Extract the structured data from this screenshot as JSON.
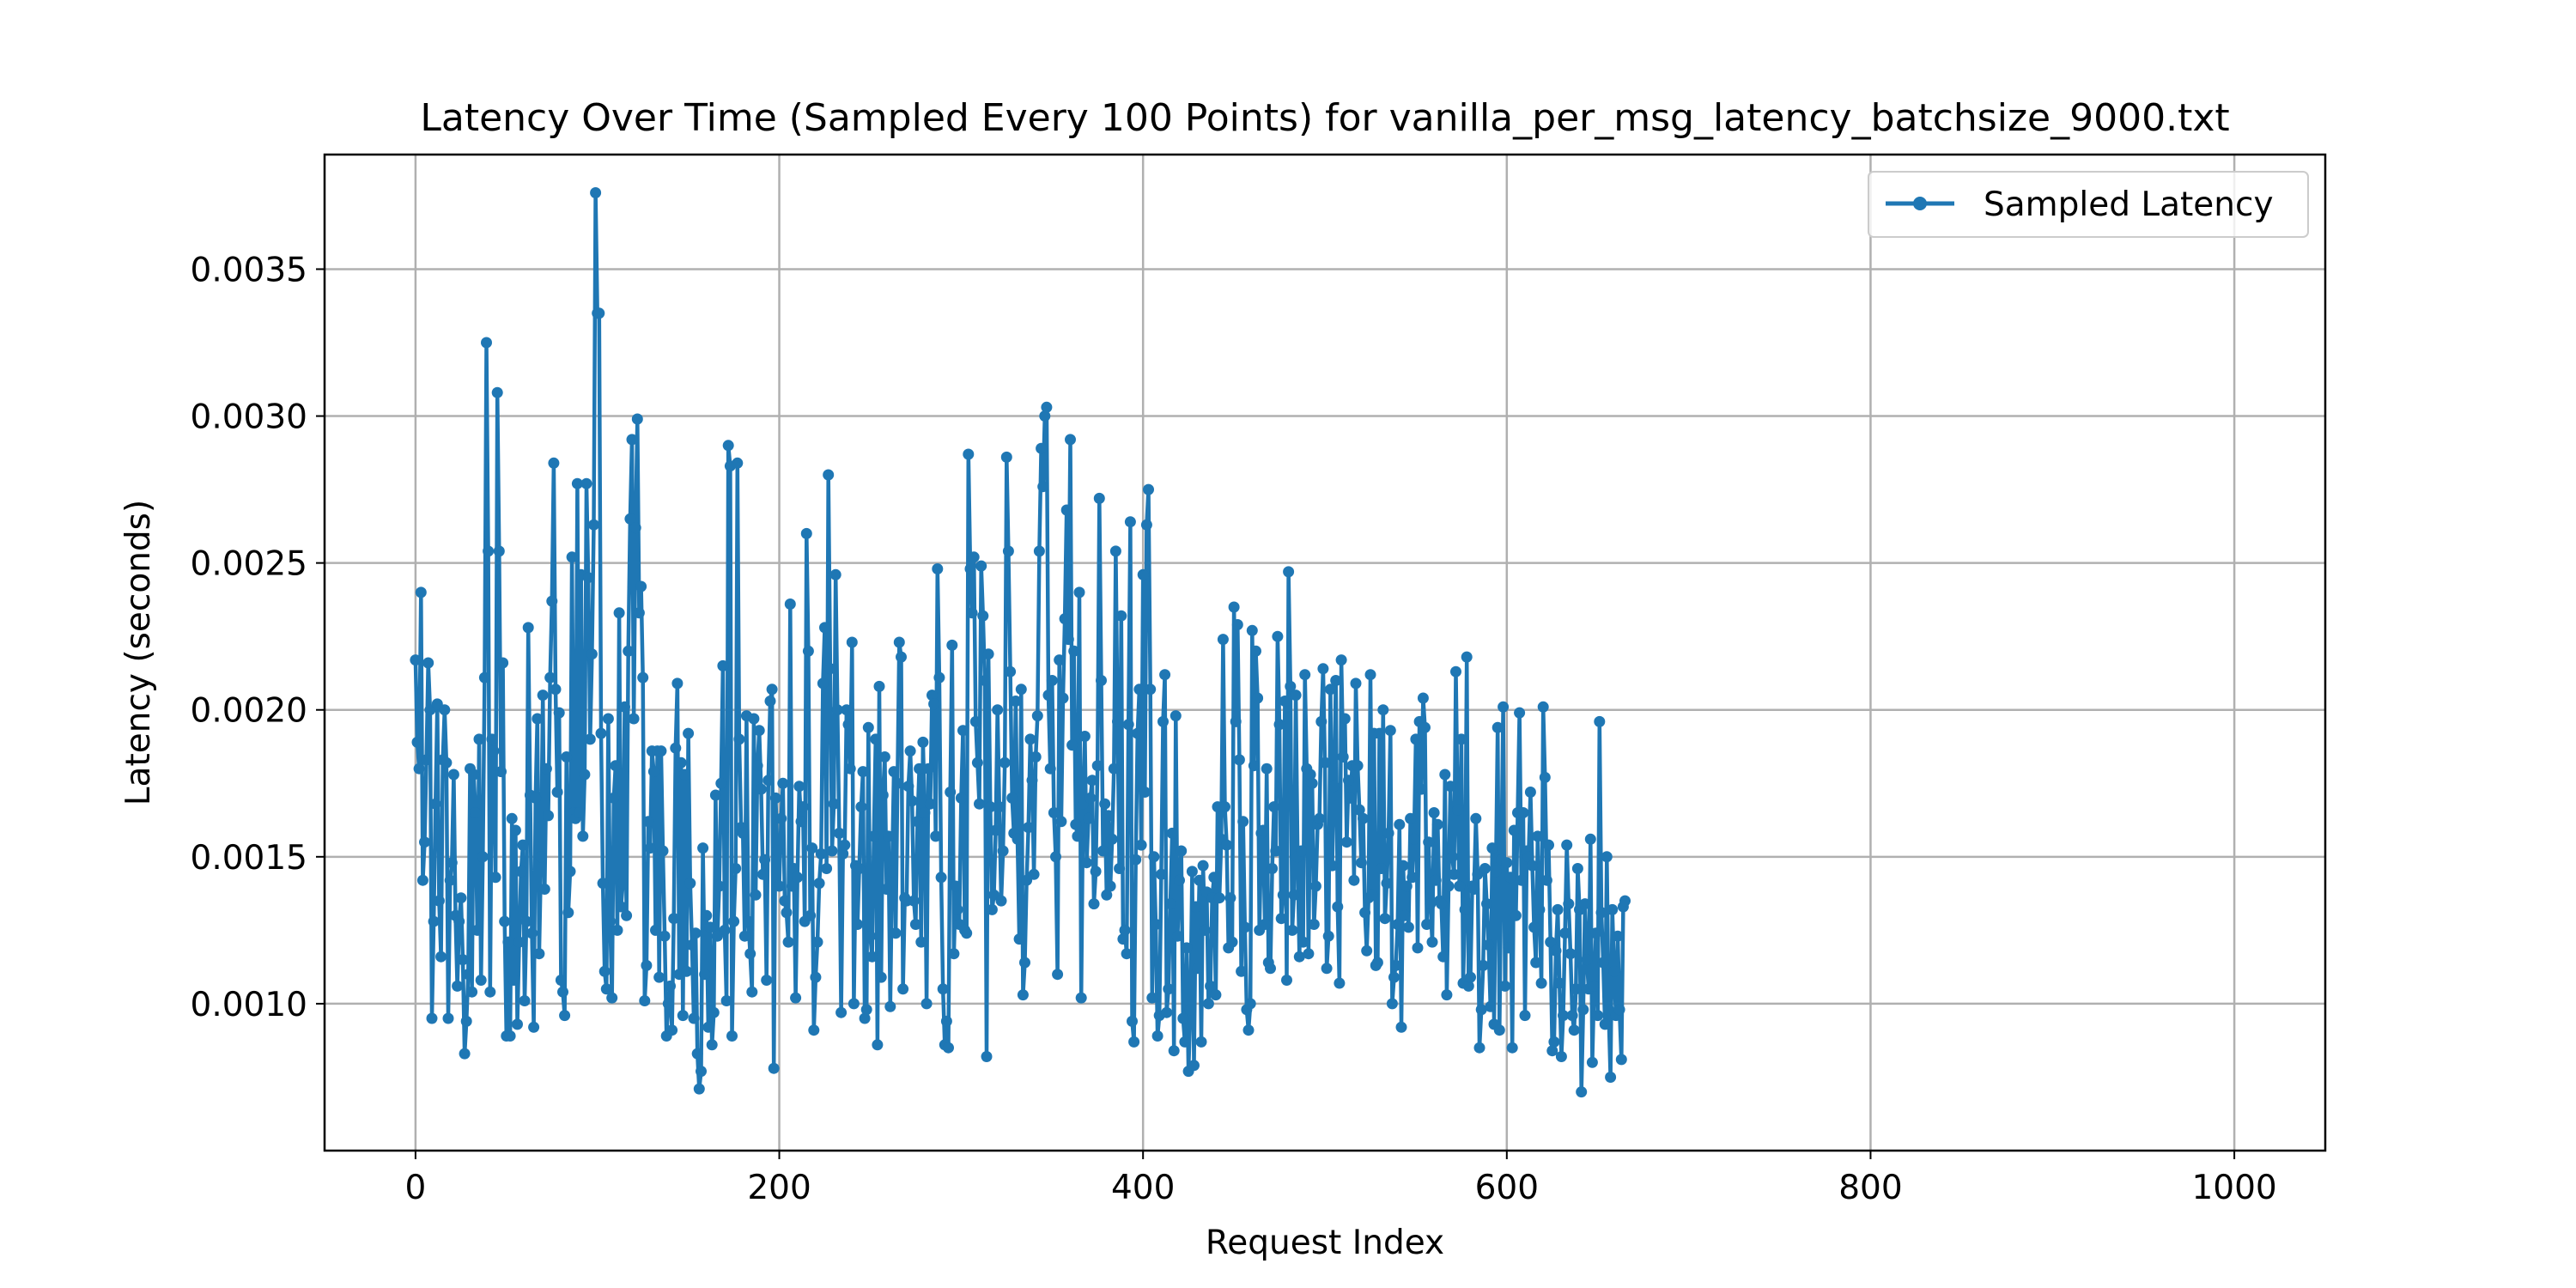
{
  "chart_data": {
    "type": "line",
    "title": "Latency Over Time (Sampled Every 100 Points) for vanilla_per_msg_latency_batchsize_9000.txt",
    "xlabel": "Request Index",
    "ylabel": "Latency (seconds)",
    "xlim": [
      -50,
      1050
    ],
    "ylim": [
      0.0005,
      0.00389
    ],
    "xticks": [
      0,
      200,
      400,
      600,
      800,
      1000
    ],
    "xtick_labels": [
      "0",
      "200",
      "400",
      "600",
      "800",
      "1000"
    ],
    "yticks": [
      0.001,
      0.0015,
      0.002,
      0.0025,
      0.003,
      0.0035
    ],
    "ytick_labels": [
      "0.0010",
      "0.0015",
      "0.0020",
      "0.0025",
      "0.0030",
      "0.0035"
    ],
    "grid": true,
    "legend_position": "upper right",
    "series_color": "#1f77b4",
    "series": [
      {
        "name": "Sampled Latency",
        "x_start": 0,
        "x_step": 1,
        "values": [
          0.00217,
          0.00189,
          0.0018,
          0.0024,
          0.00142,
          0.00155,
          0.00183,
          0.00216,
          0.002,
          0.00095,
          0.00128,
          0.00168,
          0.00202,
          0.00135,
          0.00116,
          0.00183,
          0.002,
          0.00182,
          0.00095,
          0.00142,
          0.00148,
          0.00178,
          0.0013,
          0.00106,
          0.00128,
          0.00136,
          0.00115,
          0.00083,
          0.00094,
          0.0011,
          0.0018,
          0.00104,
          0.00178,
          0.00165,
          0.00125,
          0.0019,
          0.00108,
          0.0015,
          0.00211,
          0.00325,
          0.00254,
          0.00104,
          0.0019,
          0.00186,
          0.00143,
          0.00308,
          0.00254,
          0.00179,
          0.00216,
          0.00128,
          0.00089,
          0.00121,
          0.00089,
          0.00163,
          0.00108,
          0.00159,
          0.00093,
          0.00121,
          0.00145,
          0.00154,
          0.00101,
          0.00128,
          0.00228,
          0.00171,
          0.00124,
          0.00092,
          0.0017,
          0.00197,
          0.00117,
          0.0015,
          0.00205,
          0.00139,
          0.0018,
          0.00164,
          0.00211,
          0.00237,
          0.00284,
          0.00207,
          0.00172,
          0.00199,
          0.00108,
          0.00104,
          0.00096,
          0.00184,
          0.00131,
          0.00145,
          0.00252,
          0.00165,
          0.00163,
          0.00277,
          0.00165,
          0.00246,
          0.00157,
          0.00178,
          0.00277,
          0.00245,
          0.0019,
          0.00219,
          0.00263,
          0.00376,
          0.00335,
          0.00335,
          0.00192,
          0.00141,
          0.00111,
          0.00105,
          0.00197,
          0.00128,
          0.00102,
          0.0017,
          0.00181,
          0.00125,
          0.00233,
          0.00133,
          0.00141,
          0.00201,
          0.0013,
          0.0022,
          0.00265,
          0.00292,
          0.00197,
          0.00262,
          0.00299,
          0.00233,
          0.00242,
          0.00211,
          0.00101,
          0.00113,
          0.00162,
          0.00153,
          0.00186,
          0.00179,
          0.00125,
          0.00186,
          0.00109,
          0.00186,
          0.00152,
          0.00123,
          0.00089,
          0.001,
          0.00106,
          0.00091,
          0.00129,
          0.00187,
          0.00209,
          0.0011,
          0.00182,
          0.00096,
          0.00178,
          0.00111,
          0.00192,
          0.00141,
          0.0012,
          0.00095,
          0.00124,
          0.00083,
          0.00071,
          0.00077,
          0.00153,
          0.0011,
          0.0013,
          0.00092,
          0.00126,
          0.00086,
          0.00097,
          0.00171,
          0.00123,
          0.0014,
          0.00175,
          0.00215,
          0.00125,
          0.00101,
          0.0029,
          0.00283,
          0.00089,
          0.00128,
          0.00146,
          0.00284,
          0.0019,
          0.0016,
          0.00158,
          0.00123,
          0.00198,
          0.00128,
          0.00117,
          0.00104,
          0.00197,
          0.00137,
          0.00181,
          0.00193,
          0.00173,
          0.00144,
          0.00149,
          0.00108,
          0.00176,
          0.00203,
          0.00207,
          0.00078,
          0.0017,
          0.00152,
          0.0014,
          0.00163,
          0.00175,
          0.00135,
          0.00131,
          0.00121,
          0.00236,
          0.0014,
          0.00146,
          0.00102,
          0.00143,
          0.00174,
          0.00162,
          0.00167,
          0.00128,
          0.0026,
          0.0022,
          0.0013,
          0.00153,
          0.00091,
          0.00109,
          0.00121,
          0.00141,
          0.00151,
          0.00209,
          0.00228,
          0.00146,
          0.0028,
          0.00214,
          0.00152,
          0.00168,
          0.00246,
          0.002,
          0.00158,
          0.00097,
          0.00151,
          0.00154,
          0.002,
          0.00195,
          0.0018,
          0.00223,
          0.001,
          0.00147,
          0.00127,
          0.00146,
          0.00167,
          0.00179,
          0.00095,
          0.00098,
          0.00194,
          0.00123,
          0.00116,
          0.00157,
          0.0019,
          0.00086,
          0.00208,
          0.00109,
          0.00171,
          0.00184,
          0.00139,
          0.00157,
          0.00099,
          0.00145,
          0.00179,
          0.00124,
          0.00175,
          0.00223,
          0.00218,
          0.00105,
          0.00136,
          0.00135,
          0.00174,
          0.00186,
          0.00169,
          0.00135,
          0.00127,
          0.00162,
          0.0018,
          0.00121,
          0.00189,
          0.00165,
          0.001,
          0.0018,
          0.00168,
          0.00205,
          0.00202,
          0.00157,
          0.00248,
          0.00211,
          0.00143,
          0.00105,
          0.00086,
          0.00094,
          0.00085,
          0.00172,
          0.00222,
          0.00117,
          0.0014,
          0.00132,
          0.00127,
          0.0017,
          0.00193,
          0.00125,
          0.00124,
          0.00287,
          0.00248,
          0.00233,
          0.00252,
          0.00196,
          0.00182,
          0.00168,
          0.00249,
          0.00232,
          0.0021,
          0.00082,
          0.00219,
          0.00167,
          0.00132,
          0.00137,
          0.00159,
          0.002,
          0.00167,
          0.00135,
          0.00152,
          0.00182,
          0.00286,
          0.00254,
          0.00213,
          0.0017,
          0.00158,
          0.00203,
          0.00156,
          0.00122,
          0.00207,
          0.00103,
          0.00114,
          0.00142,
          0.0016,
          0.0019,
          0.00176,
          0.00144,
          0.00184,
          0.00198,
          0.00254,
          0.00289,
          0.00276,
          0.003,
          0.00303,
          0.00205,
          0.0018,
          0.0021,
          0.00165,
          0.0015,
          0.0011,
          0.00217,
          0.00162,
          0.00204,
          0.00231,
          0.00268,
          0.00224,
          0.00292,
          0.00188,
          0.0022,
          0.00161,
          0.00157,
          0.0024,
          0.00102,
          0.00168,
          0.00191,
          0.00148,
          0.00163,
          0.0017,
          0.00176,
          0.00134,
          0.00145,
          0.00181,
          0.00272,
          0.0021,
          0.00152,
          0.00168,
          0.00137,
          0.00164,
          0.0014,
          0.00156,
          0.0018,
          0.00254,
          0.00196,
          0.00146,
          0.00232,
          0.00122,
          0.00125,
          0.00117,
          0.00195,
          0.00264,
          0.00094,
          0.00087,
          0.00149,
          0.00192,
          0.00207,
          0.00154,
          0.00246,
          0.00172,
          0.00263,
          0.00275,
          0.00207,
          0.00102,
          0.0015,
          0.00127,
          0.00089,
          0.00096,
          0.00144,
          0.00196,
          0.00212,
          0.00097,
          0.00105,
          0.00134,
          0.00158,
          0.00084,
          0.00198,
          0.00123,
          0.00142,
          0.00152,
          0.00095,
          0.00087,
          0.00119,
          0.00077,
          0.00098,
          0.00145,
          0.00079,
          0.00133,
          0.00112,
          0.00142,
          0.00087,
          0.00147,
          0.00125,
          0.00138,
          0.001,
          0.00106,
          0.00136,
          0.00143,
          0.00103,
          0.00167,
          0.00136,
          0.00156,
          0.00224,
          0.00167,
          0.00154,
          0.00119,
          0.00136,
          0.00121,
          0.00235,
          0.00196,
          0.00229,
          0.00183,
          0.00111,
          0.00162,
          0.00126,
          0.00098,
          0.00091,
          0.001,
          0.00227,
          0.00181,
          0.0022,
          0.00204,
          0.00125,
          0.00158,
          0.00159,
          0.00127,
          0.0018,
          0.00114,
          0.00112,
          0.00146,
          0.00167,
          0.00152,
          0.00225,
          0.00195,
          0.00129,
          0.00137,
          0.00203,
          0.00108,
          0.00247,
          0.00208,
          0.00125,
          0.00137,
          0.00205,
          0.0015,
          0.00116,
          0.00152,
          0.00121,
          0.00212,
          0.0018,
          0.00117,
          0.00178,
          0.00175,
          0.00127,
          0.0014,
          0.00161,
          0.00163,
          0.00196,
          0.00214,
          0.00182,
          0.00112,
          0.00123,
          0.00207,
          0.00147,
          0.00174,
          0.0021,
          0.00133,
          0.00107,
          0.00217,
          0.00184,
          0.00197,
          0.00155,
          0.00176,
          0.0017,
          0.00181,
          0.00142,
          0.00209,
          0.00181,
          0.00166,
          0.00148,
          0.00163,
          0.00131,
          0.00118,
          0.00136,
          0.00212,
          0.00137,
          0.00192,
          0.00113,
          0.00114,
          0.00192,
          0.00146,
          0.002,
          0.00129,
          0.00141,
          0.00158,
          0.00193,
          0.001,
          0.00109,
          0.00113,
          0.00127,
          0.00161,
          0.00092,
          0.00147,
          0.0013,
          0.0014,
          0.00126,
          0.00163,
          0.00143,
          0.00156,
          0.0019,
          0.00119,
          0.00196,
          0.00173,
          0.00204,
          0.00194,
          0.00127,
          0.00155,
          0.00134,
          0.00121,
          0.00165,
          0.00142,
          0.00161,
          0.00135,
          0.00134,
          0.00116,
          0.00178,
          0.00103,
          0.0014,
          0.00174,
          0.0015,
          0.00144,
          0.00213,
          0.00166,
          0.0014,
          0.0019,
          0.00107,
          0.00132,
          0.00218,
          0.00106,
          0.00109,
          0.0014,
          0.00139,
          0.00163,
          0.00144,
          0.00085,
          0.00098,
          0.00113,
          0.00146,
          0.00134,
          0.0012,
          0.00099,
          0.00153,
          0.00093,
          0.00145,
          0.00194,
          0.00091,
          0.00149,
          0.00201,
          0.00106,
          0.00148,
          0.00119,
          0.00143,
          0.00085,
          0.00159,
          0.0013,
          0.00165,
          0.00199,
          0.00142,
          0.00165,
          0.00096,
          0.00152,
          0.0015,
          0.00172,
          0.00147,
          0.00126,
          0.00114,
          0.00157,
          0.00132,
          0.00107,
          0.00201,
          0.00177,
          0.00142,
          0.00154,
          0.00121,
          0.00084,
          0.00087,
          0.00118,
          0.00132,
          0.00107,
          0.00082,
          0.00096,
          0.00124,
          0.00154,
          0.00134,
          0.00117,
          0.00096,
          0.00091,
          0.00105,
          0.00146,
          0.00132,
          0.0007,
          0.00098,
          0.00134,
          0.00115,
          0.00105,
          0.00156,
          0.0008,
          0.00106,
          0.00124,
          0.00096,
          0.00196,
          0.00131,
          0.00114,
          0.00093,
          0.0015,
          0.00098,
          0.00075,
          0.00132,
          0.00111,
          0.00096,
          0.00123,
          0.00098,
          0.00081,
          0.00133,
          0.00135
        ]
      }
    ]
  }
}
